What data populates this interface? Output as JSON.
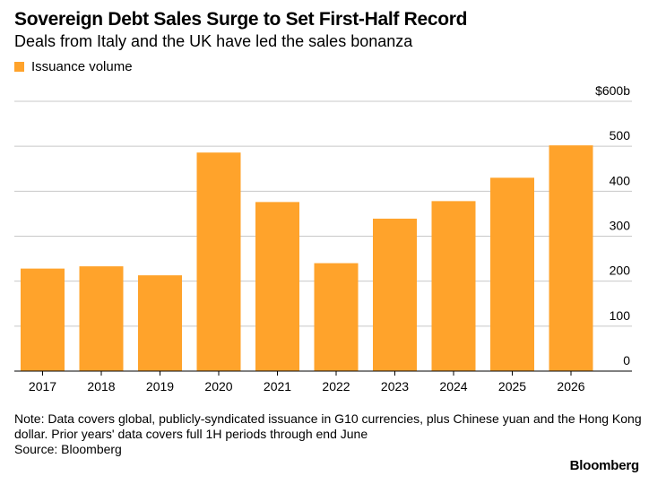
{
  "header": {
    "title": "Sovereign Debt Sales Surge to Set First-Half Record",
    "subtitle": "Deals from Italy and the UK have led the sales bonanza"
  },
  "footer": {
    "note": "Note: Data covers global, publicly-syndicated issuance in G10 currencies, plus Chinese yuan and the Hong Kong dollar. Prior years' data covers full 1H periods through end June",
    "source": "Source: Bloomberg",
    "brand": "Bloomberg"
  },
  "colors": {
    "bar": "#ffa32b",
    "grid": "#c8c8c8",
    "axis": "#000000"
  },
  "chart_data": {
    "type": "bar",
    "categories": [
      "2017",
      "2018",
      "2019",
      "2020",
      "2021",
      "2022",
      "2023",
      "2024",
      "2025",
      "2026"
    ],
    "series": [
      {
        "name": "Issuance volume",
        "values": [
          228,
          233,
          213,
          486,
          376,
          240,
          339,
          378,
          430,
          502
        ]
      }
    ],
    "ylim": [
      0,
      600
    ],
    "yticks": [
      "0",
      "100",
      "200",
      "300",
      "400",
      "500",
      "$600b"
    ],
    "legend_position": "top-left",
    "y_axis_side": "right",
    "grid": true
  }
}
